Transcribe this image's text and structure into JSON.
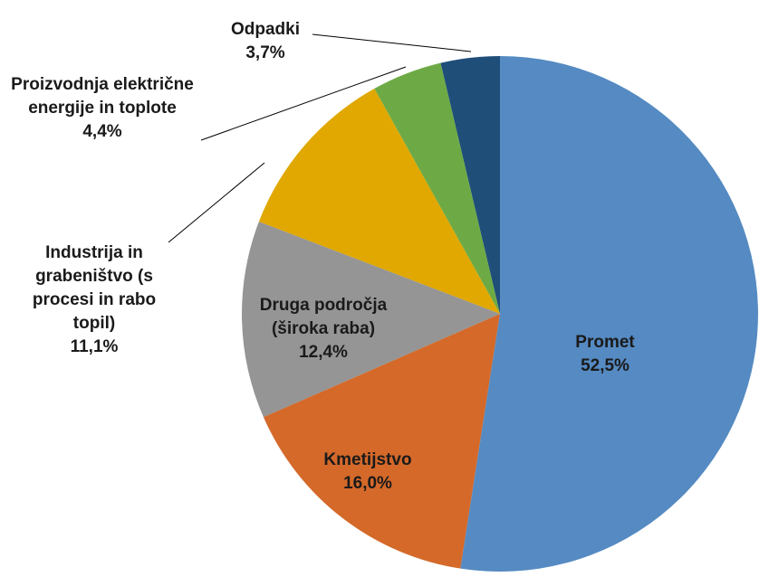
{
  "chart_data": {
    "type": "pie",
    "categories": [
      "Promet",
      "Kmetijstvo",
      "Druga področja (široka raba)",
      "Industrija in grabeništvo (s procesi in rabo topil)",
      "Proizvodnja električne energije in toplote",
      "Odpadki"
    ],
    "values": [
      52.5,
      16.0,
      12.4,
      11.1,
      4.4,
      3.7
    ],
    "value_labels": [
      "52,5%",
      "16,0%",
      "12,4%",
      "11,1%",
      "4,4%",
      "3,7%"
    ],
    "colors": [
      "#558ac2",
      "#d4692a",
      "#959595",
      "#e0a800",
      "#6daa45",
      "#1f4e79"
    ]
  }
}
